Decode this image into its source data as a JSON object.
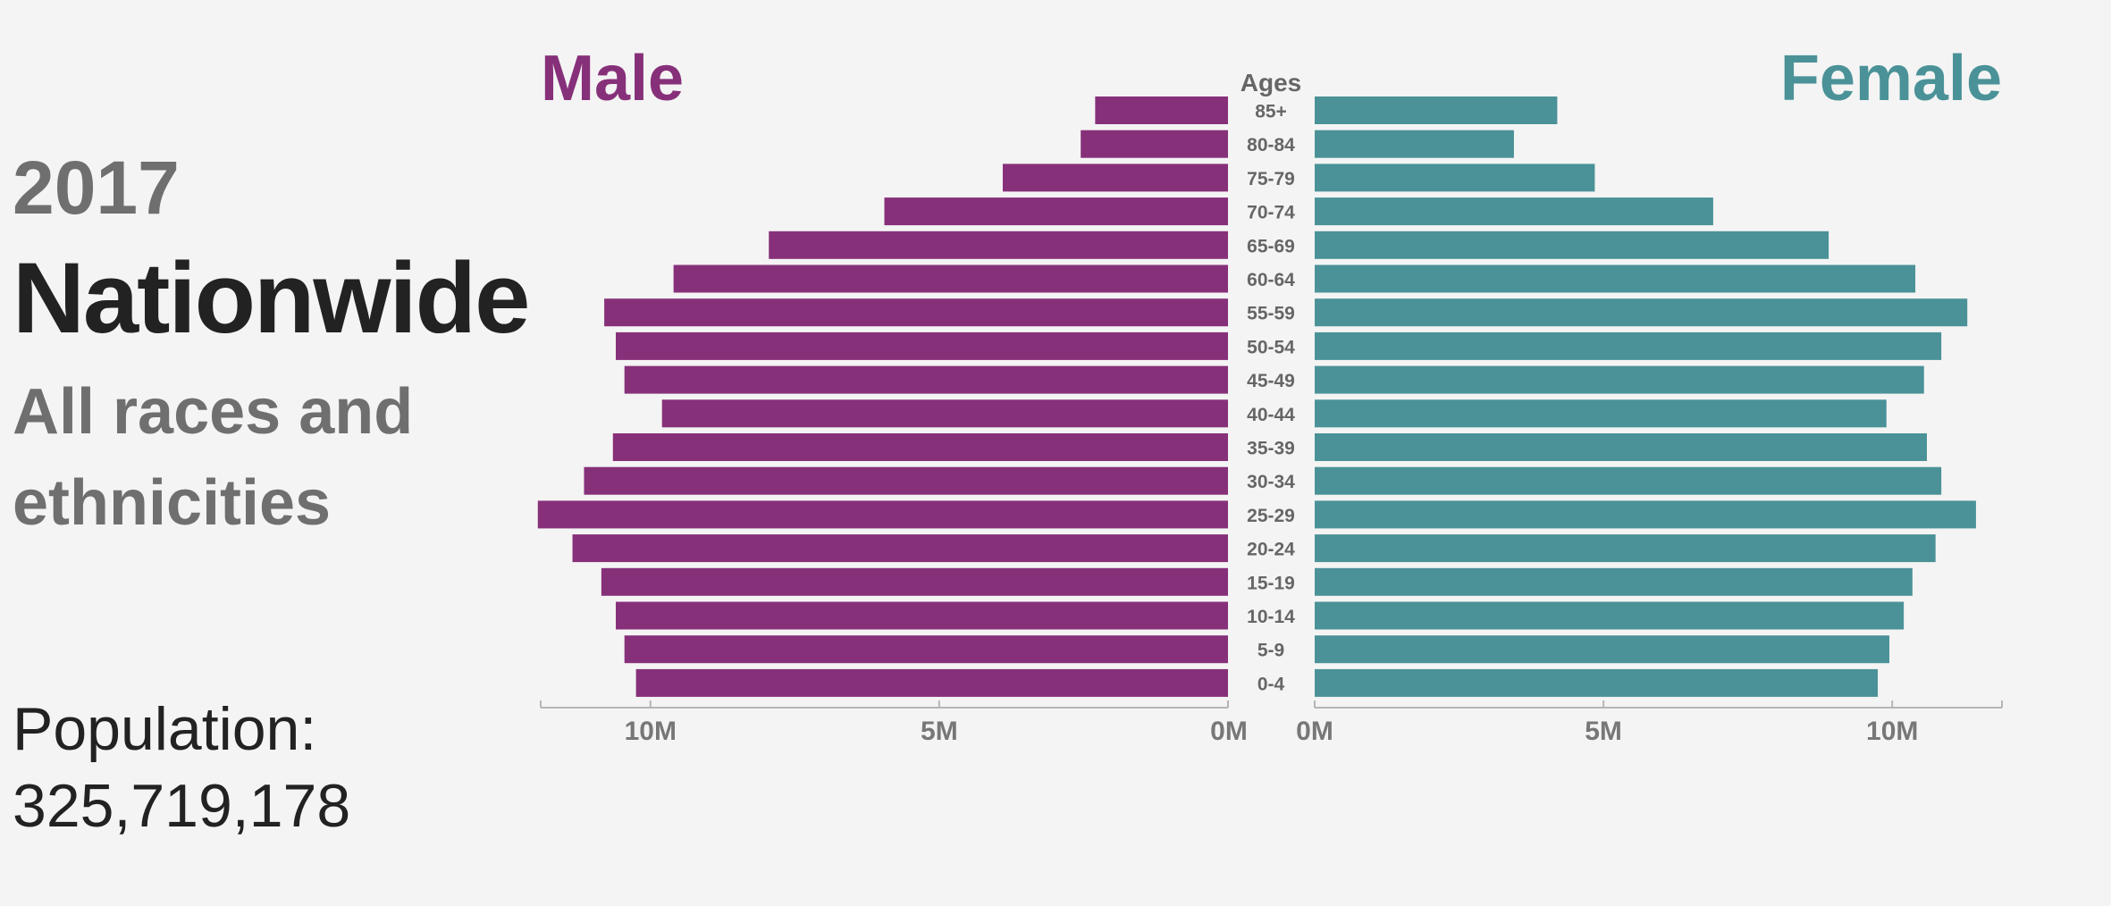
{
  "header": {
    "year": "2017",
    "place": "Nationwide",
    "group": "All races and ethnicities",
    "population_label": "Population:",
    "population_value": "325,719,178"
  },
  "colors": {
    "male": "#87307a",
    "female": "#4a9297"
  },
  "chart_data": {
    "type": "bar",
    "orientation": "horizontal",
    "layout": "population-pyramid",
    "legend": [
      "Male",
      "Female"
    ],
    "age_axis_title": "Ages",
    "categories": [
      "85+",
      "80-84",
      "75-79",
      "70-74",
      "65-69",
      "60-64",
      "55-59",
      "50-54",
      "45-49",
      "40-44",
      "35-39",
      "30-34",
      "25-29",
      "20-24",
      "15-19",
      "10-14",
      "5-9",
      "0-4"
    ],
    "series": [
      {
        "name": "Male",
        "values": [
          2.3,
          2.55,
          3.9,
          5.95,
          7.95,
          9.6,
          10.8,
          10.6,
          10.45,
          9.8,
          10.65,
          11.15,
          11.95,
          11.35,
          10.85,
          10.6,
          10.45,
          10.25
        ]
      },
      {
        "name": "Female",
        "values": [
          4.2,
          3.45,
          4.85,
          6.9,
          8.9,
          10.4,
          11.3,
          10.85,
          10.55,
          9.9,
          10.6,
          10.85,
          11.45,
          10.75,
          10.35,
          10.2,
          9.95,
          9.75
        ]
      }
    ],
    "unit": "M",
    "xlim": [
      0,
      11.9
    ],
    "ticks": [
      0,
      5,
      10
    ],
    "tick_labels": [
      "0M",
      "5M",
      "10M"
    ]
  }
}
